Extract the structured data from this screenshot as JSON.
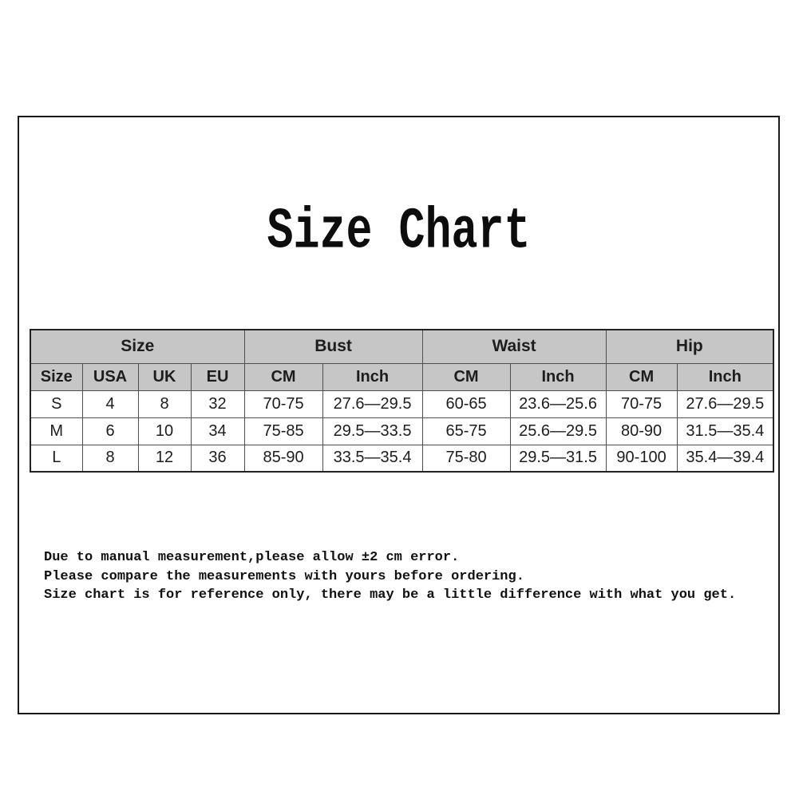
{
  "page": {
    "title": "Size Chart"
  },
  "table": {
    "groups": [
      {
        "label": "Size",
        "span": 4
      },
      {
        "label": "Bust",
        "span": 2
      },
      {
        "label": "Waist",
        "span": 2
      },
      {
        "label": "Hip",
        "span": 2
      }
    ],
    "columns": [
      "Size",
      "USA",
      "UK",
      "EU",
      "CM",
      "Inch",
      "CM",
      "Inch",
      "CM",
      "Inch"
    ],
    "rows": [
      [
        "S",
        "4",
        "8",
        "32",
        "70-75",
        "27.6—29.5",
        "60-65",
        "23.6—25.6",
        "70-75",
        "27.6—29.5"
      ],
      [
        "M",
        "6",
        "10",
        "34",
        "75-85",
        "29.5—33.5",
        "65-75",
        "25.6—29.5",
        "80-90",
        "31.5—35.4"
      ],
      [
        "L",
        "8",
        "12",
        "36",
        "85-90",
        "33.5—35.4",
        "75-80",
        "29.5—31.5",
        "90-100",
        "35.4—39.4"
      ]
    ]
  },
  "notes": {
    "line1": "Due to manual measurement,please allow ±2 cm error.",
    "line2": "Please compare the measurements with yours before ordering.",
    "line3": "Size chart is for reference only, there may be a little difference with what you get."
  },
  "colors": {
    "header_bg": "#c6c6c6",
    "border": "#4f4f4f",
    "frame_border": "#1b1b1b",
    "text": "#1d1d1d"
  }
}
